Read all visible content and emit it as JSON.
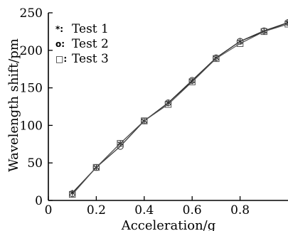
{
  "chart_data": {
    "type": "line",
    "title": "",
    "xlabel": "Acceleration/g",
    "ylabel": "Wavelength shift/pm",
    "xlim": [
      0,
      1.0
    ],
    "ylim": [
      0,
      250
    ],
    "xticks": [
      0,
      0.2,
      0.4,
      0.6,
      0.8
    ],
    "xtick_labels": [
      "0",
      "0.2",
      "0.4",
      "0.6",
      "0.8"
    ],
    "yticks": [
      0,
      50,
      100,
      150,
      200,
      250
    ],
    "ytick_labels": [
      "0",
      "50",
      "100",
      "150",
      "200",
      "250"
    ],
    "grid": false,
    "legend_position": "top-left",
    "x": [
      0.1,
      0.2,
      0.3,
      0.4,
      0.5,
      0.6,
      0.7,
      0.8,
      0.9,
      1.0
    ],
    "series": [
      {
        "name": "Test 1",
        "marker": "star",
        "legend_symbol": "*:",
        "color": "#111111",
        "values": [
          10,
          44,
          76,
          106,
          130,
          159,
          190,
          212,
          225,
          237
        ]
      },
      {
        "name": "Test 2",
        "marker": "circle",
        "legend_symbol": "o:",
        "color": "#333333",
        "values": [
          9,
          44,
          72,
          106,
          130,
          160,
          190,
          212,
          226,
          237
        ]
      },
      {
        "name": "Test 3",
        "marker": "square",
        "legend_symbol": "□:",
        "color": "#555555",
        "values": [
          8,
          44,
          76,
          106,
          128,
          158,
          189,
          209,
          225,
          235
        ]
      }
    ]
  }
}
